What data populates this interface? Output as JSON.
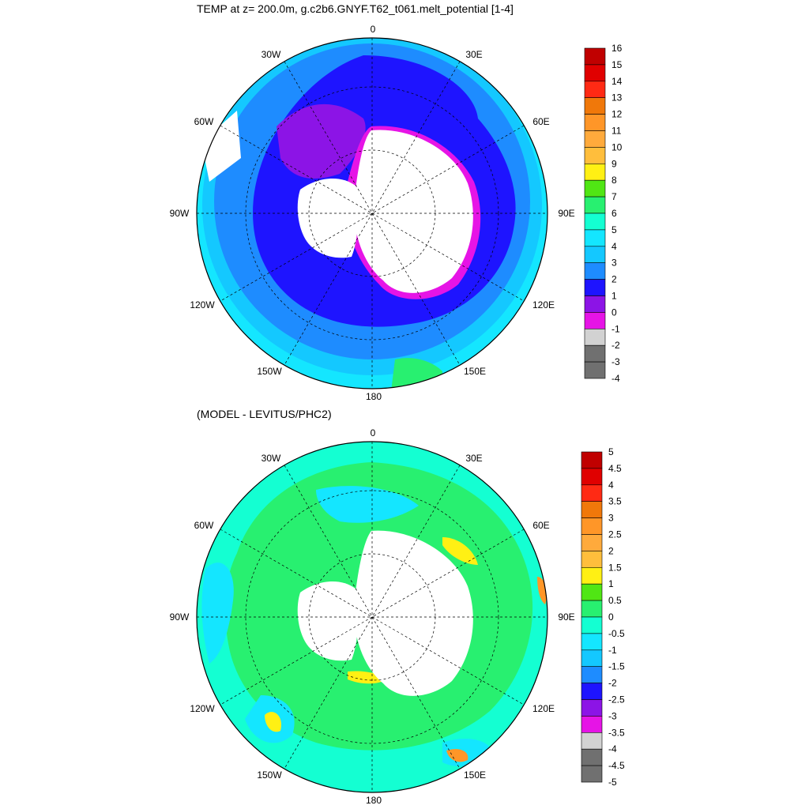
{
  "titles": {
    "top": "TEMP at z= 200.0m, g.c2b6.GNYF.T62_t061.melt_potential [1-4]",
    "bottom": "(MODEL - LEVITUS/PHC2)"
  },
  "longitude_labels": [
    "0",
    "30E",
    "60E",
    "90E",
    "120E",
    "150E",
    "180",
    "150W",
    "120W",
    "90W",
    "60W",
    "30W"
  ],
  "colorbar_top": {
    "labels": [
      "16",
      "15",
      "14",
      "13",
      "12",
      "11",
      "10",
      "9",
      "8",
      "7",
      "6",
      "5",
      "4",
      "3",
      "2",
      "1",
      "0",
      "-1",
      "-2",
      "-3",
      "-4"
    ],
    "colors": [
      "#c00000",
      "#e00000",
      "#ff2a14",
      "#f0780a",
      "#ff9628",
      "#ffaa3c",
      "#ffbe3c",
      "#fff014",
      "#50e614",
      "#28f070",
      "#14ffd2",
      "#14e6ff",
      "#14c8ff",
      "#1e8cff",
      "#1e14ff",
      "#8c14e6",
      "#e614e6",
      "#d2d2d2",
      "#707070"
    ]
  },
  "colorbar_bottom": {
    "labels": [
      "5",
      "4.5",
      "4",
      "3.5",
      "3",
      "2.5",
      "2",
      "1.5",
      "1",
      "0.5",
      "0",
      "-0.5",
      "-1",
      "-1.5",
      "-2",
      "-2.5",
      "-3",
      "-3.5",
      "-4",
      "-4.5",
      "-5"
    ],
    "colors": [
      "#c00000",
      "#e00000",
      "#ff2a14",
      "#f0780a",
      "#ff9628",
      "#ffaa3c",
      "#ffbe3c",
      "#fff014",
      "#50e614",
      "#28f070",
      "#14ffd2",
      "#14e6ff",
      "#14c8ff",
      "#1e8cff",
      "#1e14ff",
      "#8c14e6",
      "#e614e6",
      "#d2d2d2",
      "#707070",
      "#707070"
    ]
  }
}
